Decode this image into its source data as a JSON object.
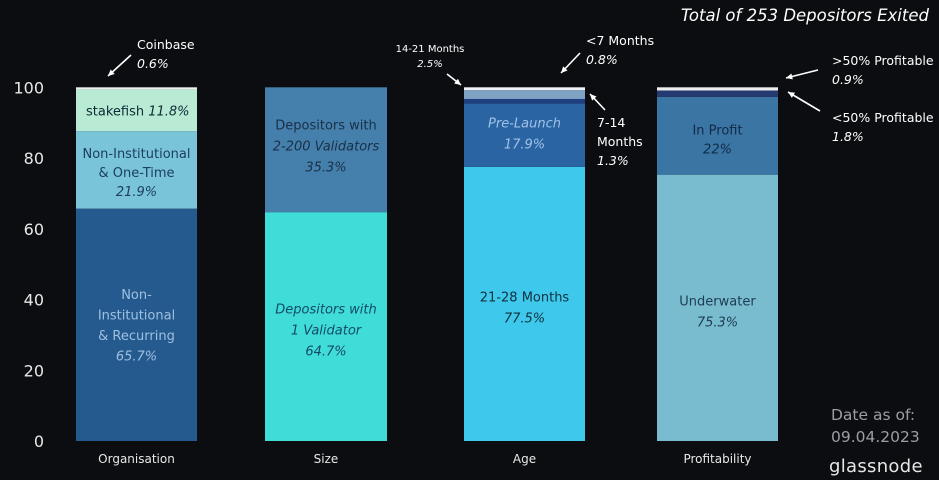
{
  "chart_data": {
    "type": "bar",
    "stacked": true,
    "title": "Total of 253 Depositors Exited",
    "ylim": [
      0,
      100
    ],
    "yticks": [
      0,
      20,
      40,
      60,
      80,
      100
    ],
    "grid": false,
    "categories": [
      "Organisation",
      "Size",
      "Age",
      "Profitability"
    ],
    "stacks": [
      {
        "category": "Organisation",
        "segments": [
          {
            "label": "Non-Institutional & Recurring",
            "lines": [
              "Non-",
              "Institutional",
              "& Recurring"
            ],
            "pct_text": "65.7%",
            "value": 65.7,
            "color": "#255a8f"
          },
          {
            "label": "Non-Institutional & One-Time",
            "lines": [
              "Non-Institutional",
              "& One-Time"
            ],
            "pct_text": "21.9%",
            "value": 21.9,
            "color": "#79c4d6"
          },
          {
            "label": "stakefish",
            "lines": [
              "stakefish"
            ],
            "pct_text": "11.8%",
            "value": 11.8,
            "color": "#b9ebd4",
            "inline": true
          },
          {
            "label": "Coinbase",
            "lines": [
              "Coinbase"
            ],
            "pct_text": "0.6%",
            "value": 0.6,
            "color": "#eeeeee"
          }
        ]
      },
      {
        "category": "Size",
        "segments": [
          {
            "label": "Depositors with 1 Validator",
            "lines": [
              "Depositors with",
              "1 Validator"
            ],
            "pct_text": "64.7%",
            "value": 64.7,
            "color": "#40dcd8"
          },
          {
            "label": "Depositors with 2-200 Validators",
            "lines": [
              "Depositors with",
              "2-200 Validators"
            ],
            "pct_text": "35.3%",
            "value": 35.3,
            "color": "#4580ac"
          }
        ]
      },
      {
        "category": "Age",
        "segments": [
          {
            "label": "21-28 Months",
            "lines": [
              "21-28 Months"
            ],
            "pct_text": "77.5%",
            "value": 77.5,
            "color": "#3ec9ec"
          },
          {
            "label": "Pre-Launch",
            "lines": [
              "Pre-Launch"
            ],
            "pct_text": "17.9%",
            "value": 17.9,
            "color": "#2a64a2"
          },
          {
            "label": "7-14 Months",
            "lines": [
              "7-14",
              "Months"
            ],
            "pct_text": "1.3%",
            "value": 1.3,
            "color": "#1f3f7e"
          },
          {
            "label": "14-21 Months",
            "lines": [
              "14-21 Months"
            ],
            "pct_text": "2.5%",
            "value": 2.5,
            "color": "#7fa3c4"
          },
          {
            "label": "<7 Months",
            "lines": [
              "<7 Months"
            ],
            "pct_text": "0.8%",
            "value": 0.8,
            "color": "#eef2f6"
          }
        ]
      },
      {
        "category": "Profitability",
        "segments": [
          {
            "label": "Underwater",
            "lines": [
              "Underwater"
            ],
            "pct_text": "75.3%",
            "value": 75.3,
            "color": "#79bcd0"
          },
          {
            "label": "In Profit",
            "lines": [
              "In Profit"
            ],
            "pct_text": "22%",
            "value": 22,
            "color": "#3a75a4"
          },
          {
            "label": "<50% Profitable",
            "lines": [
              "<50% Profitable"
            ],
            "pct_text": "1.8%",
            "value": 1.8,
            "color": "#243a70"
          },
          {
            "label": ">50% Profitable",
            "lines": [
              ">50% Profitable"
            ],
            "pct_text": "0.9%",
            "value": 0.9,
            "color": "#eeeeee"
          }
        ]
      }
    ]
  },
  "footer": {
    "date_label": "Date as of:",
    "date_value": "09.04.2023",
    "brand": "glassnode"
  }
}
